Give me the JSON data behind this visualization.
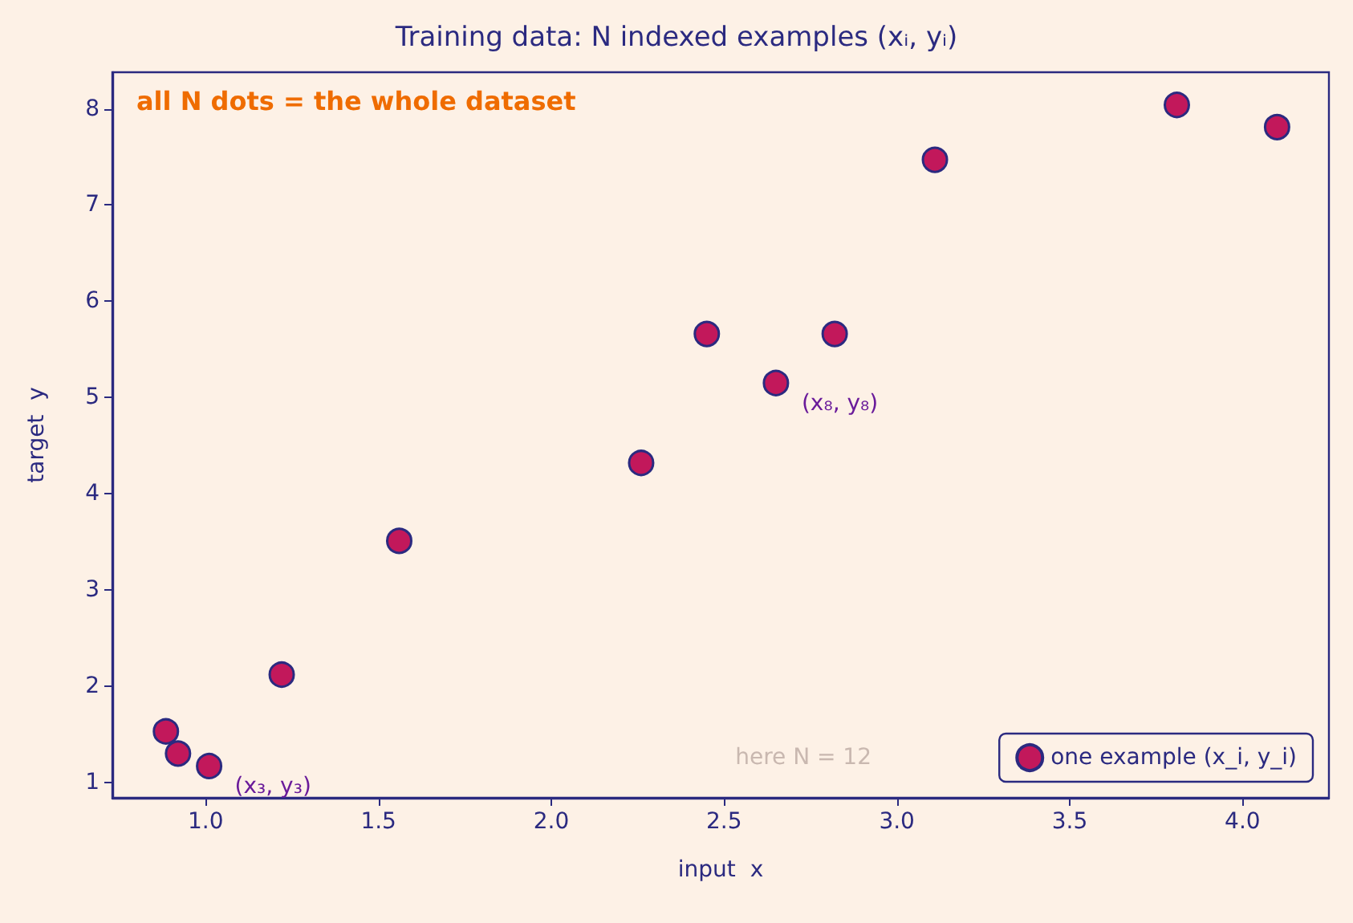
{
  "chart_data": {
    "type": "scatter",
    "title": "Training data: N indexed examples (xᵢ, yᵢ)",
    "xlabel": "input  x",
    "ylabel": "target  y",
    "x": [
      0.885,
      0.92,
      1.01,
      1.22,
      1.56,
      2.26,
      2.45,
      2.65,
      2.82,
      3.11,
      3.81,
      4.1
    ],
    "series": [
      {
        "name": "one example (x_i, y_i)",
        "color": "#c2185b",
        "values": [
          1.53,
          1.3,
          1.17,
          2.12,
          3.51,
          4.32,
          5.66,
          5.15,
          5.66,
          7.47,
          8.04,
          7.81
        ]
      }
    ],
    "xlim": [
      0.73,
      4.25
    ],
    "ylim": [
      0.84,
      8.38
    ],
    "xticks": [
      {
        "value": 1,
        "label": "1.0"
      },
      {
        "value": 1.5,
        "label": "1.5"
      },
      {
        "value": 2,
        "label": "2.0"
      },
      {
        "value": 2.5,
        "label": "2.5"
      },
      {
        "value": 3,
        "label": "3.0"
      },
      {
        "value": 3.5,
        "label": "3.5"
      },
      {
        "value": 4,
        "label": "4.0"
      }
    ],
    "yticks": [
      1,
      2,
      3,
      4,
      5,
      6,
      7,
      8
    ],
    "annotations": [
      "all N dots = the whole dataset",
      "here N = 12",
      {
        "text": "(x₈, y₈)",
        "x": 2.65,
        "y": 5.15
      },
      {
        "text": "(x₃, y₃)",
        "x": 1.01,
        "y": 1.17
      }
    ],
    "marker": "circle",
    "grid": false,
    "legend": "bottom right"
  }
}
